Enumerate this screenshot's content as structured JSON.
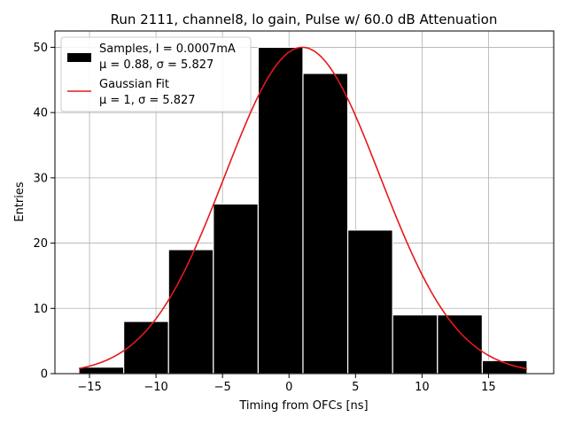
{
  "chart_data": {
    "type": "bar",
    "title": "Run 2111, channel8, lo gain, Pulse w/ 60.0 dB Attenuation",
    "xlabel": "Timing from OFCs [ns]",
    "ylabel": "Entries",
    "xlim": [
      -17.6,
      19.9
    ],
    "ylim": [
      0,
      52.5
    ],
    "grid": true,
    "x_ticks": [
      -15,
      -10,
      -5,
      0,
      5,
      10,
      15
    ],
    "y_ticks": [
      0,
      10,
      20,
      30,
      40,
      50
    ],
    "bins": [
      {
        "left": -15.8,
        "right": -12.43,
        "value": 1
      },
      {
        "left": -12.43,
        "right": -9.06,
        "value": 8
      },
      {
        "left": -9.06,
        "right": -5.69,
        "value": 19
      },
      {
        "left": -5.69,
        "right": -2.32,
        "value": 26
      },
      {
        "left": -2.32,
        "right": 1.05,
        "value": 50
      },
      {
        "left": 1.05,
        "right": 4.42,
        "value": 46
      },
      {
        "left": 4.42,
        "right": 7.79,
        "value": 22
      },
      {
        "left": 7.79,
        "right": 11.16,
        "value": 9
      },
      {
        "left": 11.16,
        "right": 14.53,
        "value": 9
      },
      {
        "left": 14.53,
        "right": 17.9,
        "value": 2
      }
    ],
    "histogram_color": "#000000",
    "fit": {
      "name": "Gaussian Fit",
      "mu": 1,
      "sigma": 5.827,
      "amplitude": 50,
      "x_range": [
        -15.8,
        17.9
      ],
      "color": "#e31a1c"
    },
    "legend": {
      "placement": "top-left",
      "entries": [
        {
          "line1": "Samples, I = 0.0007mA",
          "line2": "μ = 0.88, σ = 5.827",
          "kind": "patch"
        },
        {
          "line1": "Gaussian Fit",
          "line2": "μ = 1, σ = 5.827",
          "kind": "line"
        }
      ]
    }
  }
}
